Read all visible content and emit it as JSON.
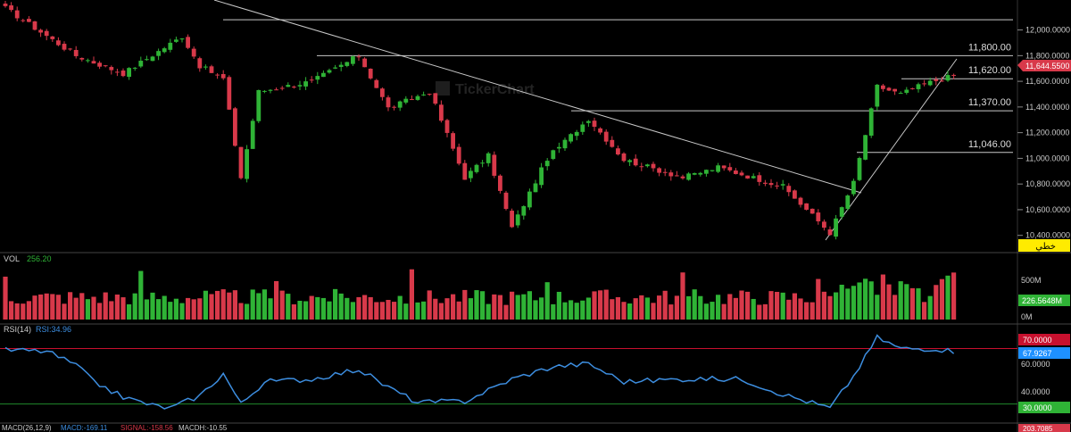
{
  "watermark": "TickerChart",
  "price_tag": "11,644.5500",
  "lang_badge": "خطي",
  "colors": {
    "up": "#2fb336",
    "down": "#d8394a",
    "rsi": "#3d8ee0",
    "rsi_upper": "#c8102e",
    "rsi_lower": "#1f8a2b",
    "level_line": "#c8c8c8",
    "background": "#000000"
  },
  "chart_data": [
    {
      "type": "candlestick",
      "panel": "price",
      "y_axis_ticks": [
        "12,000.0000",
        "11,800.0000",
        "11,600.0000",
        "11,400.0000",
        "11,200.0000",
        "11,000.0000",
        "10,800.0000",
        "10,600.0000",
        "10,400.0000"
      ],
      "ylim": [
        10370,
        12150
      ],
      "bars": 162,
      "last_price": 11644.55,
      "horizontal_levels": [
        {
          "value": 12080,
          "label": ""
        },
        {
          "value": 11800,
          "label": "11,800.00"
        },
        {
          "value": 11620,
          "label": "11,620.00"
        },
        {
          "value": 11370,
          "label": "11,370.00"
        },
        {
          "value": 11046,
          "label": "11,046.00"
        }
      ],
      "key_points": [
        {
          "bar": 0,
          "value": 12170
        },
        {
          "bar": 12,
          "value": 11800
        },
        {
          "bar": 20,
          "value": 11660
        },
        {
          "bar": 30,
          "value": 11950
        },
        {
          "bar": 33,
          "value": 11720
        },
        {
          "bar": 37,
          "value": 11620
        },
        {
          "bar": 40,
          "value": 10850
        },
        {
          "bar": 43,
          "value": 11520
        },
        {
          "bar": 52,
          "value": 11600
        },
        {
          "bar": 60,
          "value": 11800
        },
        {
          "bar": 65,
          "value": 11390
        },
        {
          "bar": 72,
          "value": 11520
        },
        {
          "bar": 78,
          "value": 10850
        },
        {
          "bar": 82,
          "value": 11020
        },
        {
          "bar": 86,
          "value": 10460
        },
        {
          "bar": 92,
          "value": 11000
        },
        {
          "bar": 99,
          "value": 11310
        },
        {
          "bar": 105,
          "value": 10990
        },
        {
          "bar": 115,
          "value": 10850
        },
        {
          "bar": 121,
          "value": 10930
        },
        {
          "bar": 132,
          "value": 10780
        },
        {
          "bar": 140,
          "value": 10420
        },
        {
          "bar": 144,
          "value": 10810
        },
        {
          "bar": 148,
          "value": 11560
        },
        {
          "bar": 152,
          "value": 11500
        },
        {
          "bar": 156,
          "value": 11580
        },
        {
          "bar": 161,
          "value": 11645
        }
      ]
    },
    {
      "type": "bar",
      "panel": "volume",
      "title": "VOL",
      "value_label": "256.20",
      "y_axis_ticks": [
        "500M",
        "0M"
      ],
      "last_value_tag": "226.5648M"
    },
    {
      "type": "line",
      "panel": "rsi",
      "title": "RSI(14)",
      "value_label": "RSI:34.96",
      "y_axis_ticks": [
        "60.0000",
        "40.0000"
      ],
      "upper_band": {
        "value": 70,
        "label": "70.0000"
      },
      "lower_band": {
        "value": 30,
        "label": "30.0000"
      },
      "last_value_tag": "67.9267",
      "ylim": [
        22,
        80
      ],
      "key_points": [
        {
          "bar": 0,
          "value": 69
        },
        {
          "bar": 7,
          "value": 68
        },
        {
          "bar": 12,
          "value": 58
        },
        {
          "bar": 15,
          "value": 46
        },
        {
          "bar": 20,
          "value": 35
        },
        {
          "bar": 25,
          "value": 29
        },
        {
          "bar": 28,
          "value": 27
        },
        {
          "bar": 33,
          "value": 36
        },
        {
          "bar": 37,
          "value": 52
        },
        {
          "bar": 40,
          "value": 30
        },
        {
          "bar": 44,
          "value": 46
        },
        {
          "bar": 52,
          "value": 48
        },
        {
          "bar": 60,
          "value": 55
        },
        {
          "bar": 65,
          "value": 42
        },
        {
          "bar": 70,
          "value": 31
        },
        {
          "bar": 78,
          "value": 32
        },
        {
          "bar": 86,
          "value": 48
        },
        {
          "bar": 93,
          "value": 57
        },
        {
          "bar": 99,
          "value": 59
        },
        {
          "bar": 105,
          "value": 46
        },
        {
          "bar": 115,
          "value": 48
        },
        {
          "bar": 125,
          "value": 48
        },
        {
          "bar": 132,
          "value": 37
        },
        {
          "bar": 140,
          "value": 27
        },
        {
          "bar": 144,
          "value": 50
        },
        {
          "bar": 148,
          "value": 78
        },
        {
          "bar": 152,
          "value": 70
        },
        {
          "bar": 158,
          "value": 70
        },
        {
          "bar": 161,
          "value": 68
        }
      ]
    },
    {
      "type": "line",
      "panel": "macd",
      "title": "MACD(26,12,9)",
      "macd_label": "MACD:-169.11",
      "signal_label": "SIGNAL:-158.56",
      "macdh_label": "MACDH:-10.55",
      "last_value_tag": "203.7085"
    }
  ]
}
